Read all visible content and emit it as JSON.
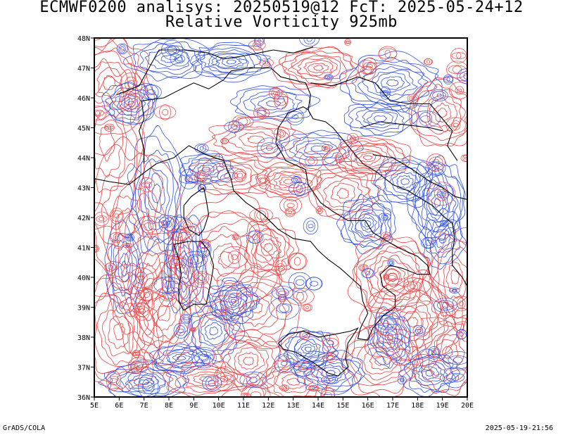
{
  "header": {
    "line1": "ECMWF0200 analisys: 20250519@12 FcT: 2025-05-24+12",
    "line2": "Relative Vorticity 925mb"
  },
  "footer": {
    "software": "GrADS/COLA",
    "timestamp": "2025-05-19-21:56"
  },
  "map": {
    "region": "Italy",
    "lon_range": [
      5,
      20
    ],
    "lat_range": [
      36,
      48
    ],
    "lon_ticks": [
      "5E",
      "6E",
      "7E",
      "8E",
      "9E",
      "10E",
      "11E",
      "12E",
      "13E",
      "14E",
      "15E",
      "16E",
      "17E",
      "18E",
      "19E",
      "20E"
    ],
    "lat_ticks": [
      "36N",
      "37N",
      "38N",
      "39N",
      "40N",
      "41N",
      "42N",
      "43N",
      "44N",
      "45N",
      "46N",
      "47N",
      "48N"
    ],
    "colors": {
      "positive_vorticity": "#f04040",
      "negative_vorticity": "#3050e8",
      "coastline": "#000000",
      "frame": "#000000"
    }
  }
}
